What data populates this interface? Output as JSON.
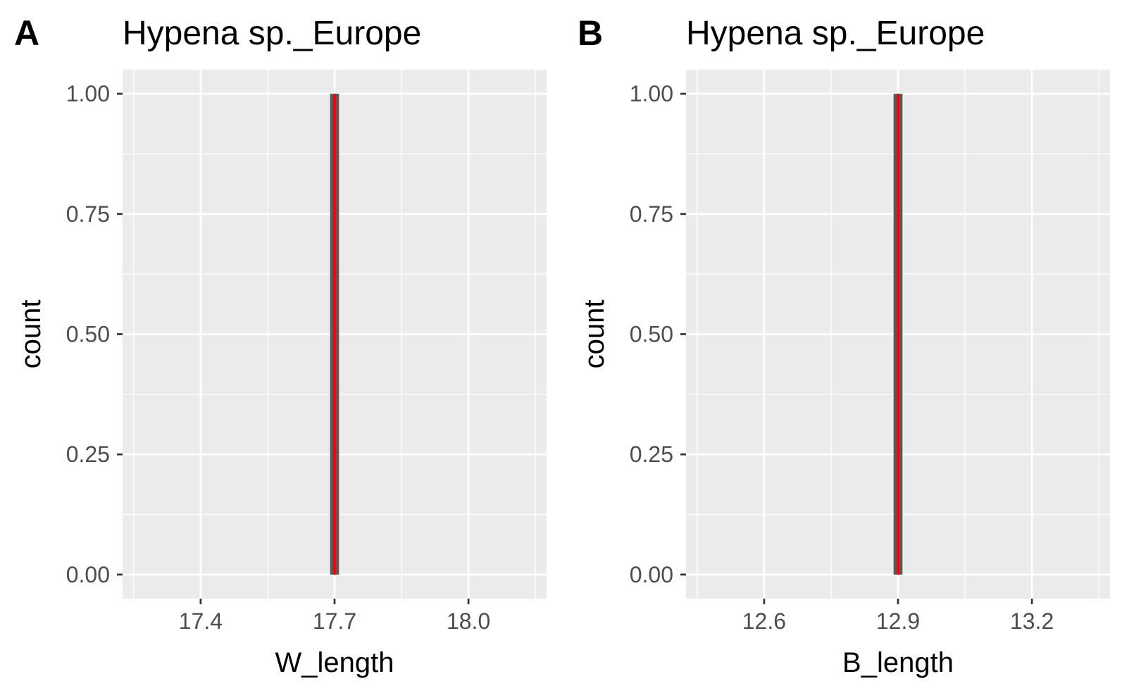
{
  "chart_data": [
    {
      "type": "bar",
      "panel_tag": "A",
      "title": "Hypena sp._Europe",
      "xlabel": "W_length",
      "ylabel": "count",
      "xlim": [
        17.225,
        18.175
      ],
      "ylim": [
        -0.05,
        1.05
      ],
      "x_ticks": [
        17.4,
        17.7,
        18.0
      ],
      "x_tick_labels": [
        "17.4",
        "17.7",
        "18.0"
      ],
      "y_ticks": [
        0,
        0.25,
        0.5,
        0.75,
        1
      ],
      "y_tick_labels": [
        "0.00",
        "0.25",
        "0.50",
        "0.75",
        "1.00"
      ],
      "bars": [
        {
          "x_min": 17.69,
          "x_max": 17.71,
          "count": 1
        }
      ],
      "reference_line_x": 17.7,
      "grid": true,
      "colors": {
        "bar": "#595959",
        "reference_line": "#ff0000",
        "panel_background": "#ebebeb",
        "grid": "#ffffff"
      }
    },
    {
      "type": "bar",
      "panel_tag": "B",
      "title": "Hypena sp._Europe",
      "xlabel": "B_length",
      "ylabel": "count",
      "xlim": [
        12.425,
        13.375
      ],
      "ylim": [
        -0.05,
        1.05
      ],
      "x_ticks": [
        12.6,
        12.9,
        13.2
      ],
      "x_tick_labels": [
        "12.6",
        "12.9",
        "13.2"
      ],
      "y_ticks": [
        0,
        0.25,
        0.5,
        0.75,
        1
      ],
      "y_tick_labels": [
        "0.00",
        "0.25",
        "0.50",
        "0.75",
        "1.00"
      ],
      "bars": [
        {
          "x_min": 12.89,
          "x_max": 12.91,
          "count": 1
        }
      ],
      "reference_line_x": 12.9,
      "grid": true,
      "colors": {
        "bar": "#595959",
        "reference_line": "#ff0000",
        "panel_background": "#ebebeb",
        "grid": "#ffffff"
      }
    }
  ]
}
